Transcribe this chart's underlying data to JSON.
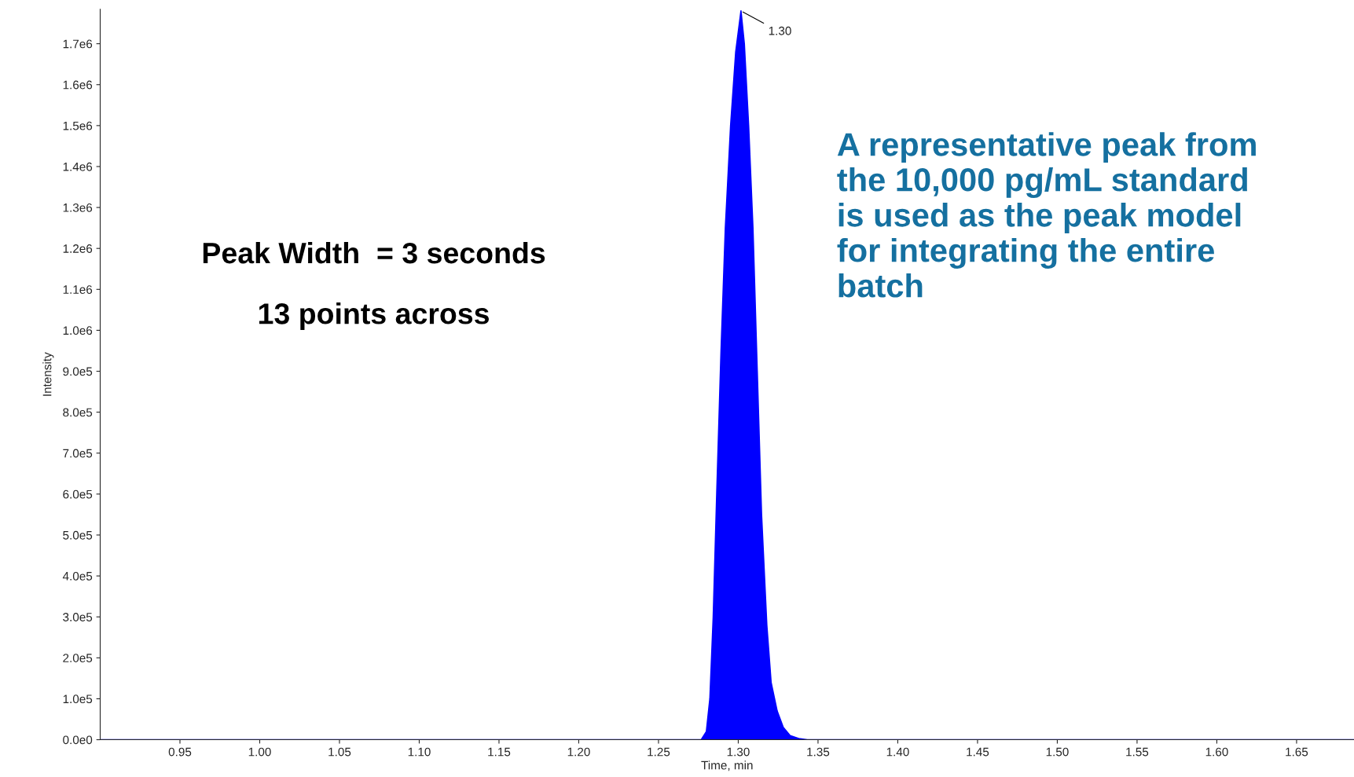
{
  "chart_data": {
    "type": "area",
    "xlabel": "Time, min",
    "ylabel": "Intensity",
    "x": [
      0.9,
      1.25,
      1.2768,
      1.28,
      1.2822,
      1.2843,
      1.2865,
      1.2892,
      1.2919,
      1.2952,
      1.2984,
      1.3017,
      1.3038,
      1.3065,
      1.3092,
      1.3119,
      1.3146,
      1.3179,
      1.3206,
      1.3244,
      1.3282,
      1.3325,
      1.3379,
      1.3433,
      1.686
    ],
    "series": [
      {
        "color": "#0000ff",
        "values": [
          0,
          0,
          0,
          20000,
          100000,
          300000,
          600000,
          950000,
          1250000,
          1500000,
          1680000,
          1780000,
          1700000,
          1500000,
          1250000,
          900000,
          550000,
          280000,
          140000,
          70000,
          30000,
          10000,
          3000,
          0,
          0
        ]
      }
    ],
    "xlim": [
      0.9,
      1.686
    ],
    "ylim": [
      0,
      1784000
    ],
    "xticks": [
      0.95,
      {
        "value": 1.0,
        "label": "1.00"
      },
      1.05,
      {
        "value": 1.1,
        "label": "1.10"
      },
      1.15,
      {
        "value": 1.2,
        "label": "1.20"
      },
      1.25,
      {
        "value": 1.3,
        "label": "1.30"
      },
      1.35,
      {
        "value": 1.4,
        "label": "1.40"
      },
      1.45,
      {
        "value": 1.5,
        "label": "1.50"
      },
      1.55,
      {
        "value": 1.6,
        "label": "1.60"
      },
      1.65
    ],
    "yticks": [
      {
        "value": 0,
        "label": "0.0e0"
      },
      {
        "value": 100000,
        "label": "1.0e5"
      },
      {
        "value": 200000,
        "label": "2.0e5"
      },
      {
        "value": 300000,
        "label": "3.0e5"
      },
      {
        "value": 400000,
        "label": "4.0e5"
      },
      {
        "value": 500000,
        "label": "5.0e5"
      },
      {
        "value": 600000,
        "label": "6.0e5"
      },
      {
        "value": 700000,
        "label": "7.0e5"
      },
      {
        "value": 800000,
        "label": "8.0e5"
      },
      {
        "value": 900000,
        "label": "9.0e5"
      },
      {
        "value": 1000000,
        "label": "1.0e6"
      },
      {
        "value": 1100000,
        "label": "1.1e6"
      },
      {
        "value": 1200000,
        "label": "1.2e6"
      },
      {
        "value": 1300000,
        "label": "1.3e6"
      },
      {
        "value": 1400000,
        "label": "1.4e6"
      },
      {
        "value": 1500000,
        "label": "1.5e6"
      },
      {
        "value": 1600000,
        "label": "1.6e6"
      },
      {
        "value": 1700000,
        "label": "1.7e6"
      }
    ],
    "annotations": [
      {
        "text": "1.30",
        "x": 1.3017,
        "y": 1780000
      },
      "Peak Width  = 3 seconds",
      "13 points across",
      "A representative peak from\nthe 10,000 pg/mL standard\nis used as the peak model\nfor integrating the entire\nbatch"
    ],
    "grid": false,
    "legend": false
  }
}
